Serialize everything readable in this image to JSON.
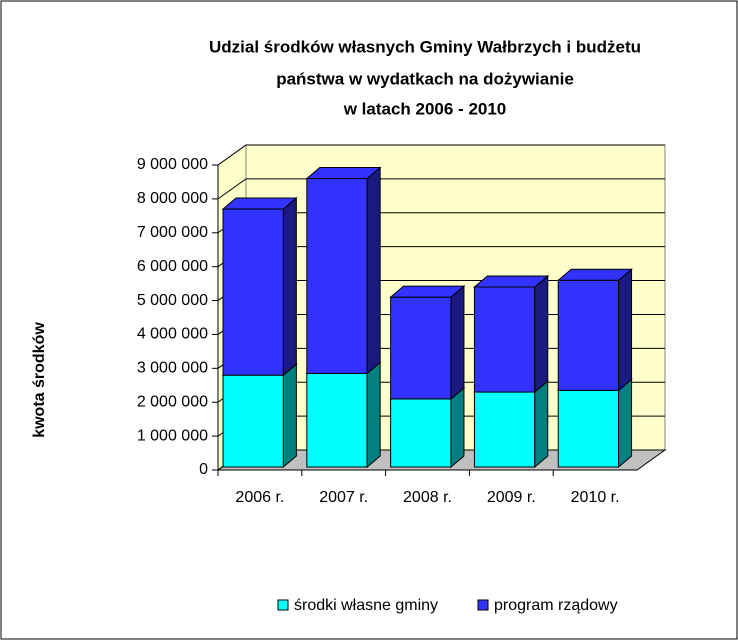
{
  "chart_data": {
    "type": "bar3d_stacked",
    "title": [
      "Udzial środków własnych  Gminy Wałbrzych i budżetu",
      "państwa w wydatkach na dożywianie",
      "w latach 2006 - 2010"
    ],
    "y_label": "kwota środków",
    "categories": [
      "2006 r.",
      "2007 r.",
      "2008 r.",
      "2009 r.",
      "2010 r."
    ],
    "series": [
      {
        "name": "środki własne  gminy",
        "color": "#00ffff",
        "side_color": "#008080",
        "values": [
          2800000,
          2850000,
          2100000,
          2300000,
          2350000
        ]
      },
      {
        "name": "program rządowy",
        "color": "#3333ff",
        "side_color": "#1a1a80",
        "values": [
          4900000,
          5750000,
          3000000,
          3100000,
          3250000
        ]
      }
    ],
    "ylim": [
      0,
      9000000
    ],
    "yticks": [
      {
        "value": 0,
        "label": "0"
      },
      {
        "value": 1000000,
        "label": "1 000 000"
      },
      {
        "value": 2000000,
        "label": "2 000 000"
      },
      {
        "value": 3000000,
        "label": "3 000 000"
      },
      {
        "value": 4000000,
        "label": "4 000 000"
      },
      {
        "value": 5000000,
        "label": "5 000 000"
      },
      {
        "value": 6000000,
        "label": "6 000 000"
      },
      {
        "value": 7000000,
        "label": "7 000 000"
      },
      {
        "value": 8000000,
        "label": "8 000 000"
      },
      {
        "value": 9000000,
        "label": "9 000 000"
      }
    ],
    "grid": true,
    "wall_color": "#ffffcc",
    "floor_color": "#c0c0c0",
    "legend": "bottom"
  }
}
